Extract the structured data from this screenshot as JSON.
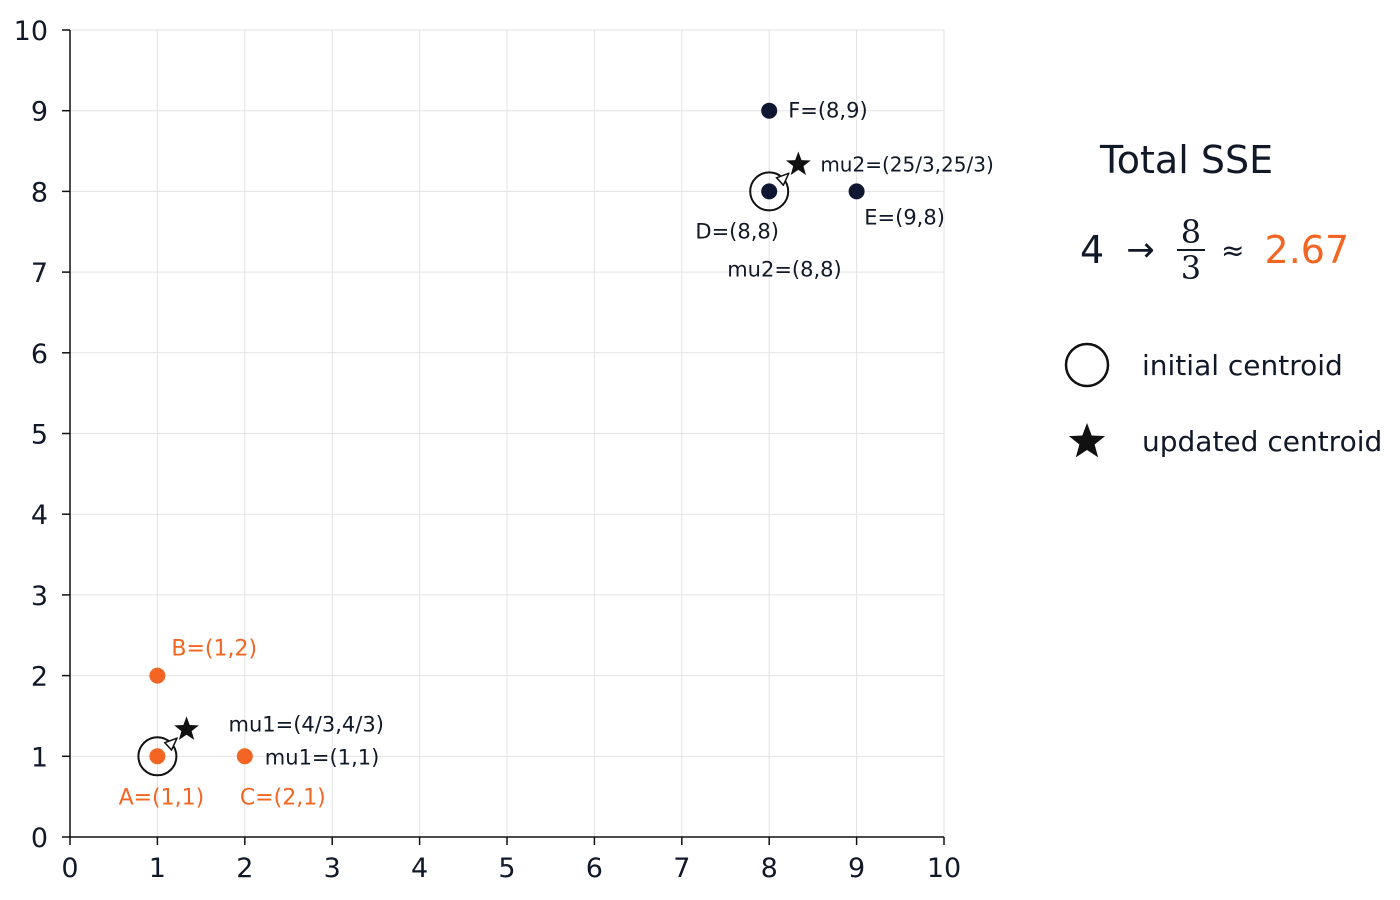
{
  "chart_data": {
    "type": "scatter",
    "xlim": [
      0,
      10
    ],
    "ylim": [
      0,
      10
    ],
    "x_ticks": [
      0,
      1,
      2,
      3,
      4,
      5,
      6,
      7,
      8,
      9,
      10
    ],
    "y_ticks": [
      0,
      1,
      2,
      3,
      4,
      5,
      6,
      7,
      8,
      9,
      10
    ],
    "grid": true,
    "colors": {
      "cluster1": "#f26522",
      "cluster2": "#0f1733",
      "grid": "#e3e3e3",
      "axis": "#111111"
    },
    "points": [
      {
        "label": "A=(1,1)",
        "x": 1,
        "y": 1,
        "cluster": 1
      },
      {
        "label": "B=(1,2)",
        "x": 1,
        "y": 2,
        "cluster": 1
      },
      {
        "label": "C=(2,1)",
        "x": 2,
        "y": 1,
        "cluster": 1
      },
      {
        "label": "D=(8,8)",
        "x": 8,
        "y": 8,
        "cluster": 2
      },
      {
        "label": "E=(9,8)",
        "x": 9,
        "y": 8,
        "cluster": 2
      },
      {
        "label": "F=(8,9)",
        "x": 8,
        "y": 9,
        "cluster": 2
      }
    ],
    "initial_centroids": [
      {
        "label": "mu1=(1,1)",
        "x": 1,
        "y": 1
      },
      {
        "label": "mu2=(8,8)",
        "x": 8,
        "y": 8
      }
    ],
    "updated_centroids": [
      {
        "label": "mu1=(4/3,4/3)",
        "x": 1.3333,
        "y": 1.3333
      },
      {
        "label": "mu2=(25/3,25/3)",
        "x": 8.3333,
        "y": 8.3333
      }
    ],
    "legend": [
      {
        "symbol": "circle-outline",
        "label": "initial centroid"
      },
      {
        "symbol": "star",
        "label": "updated centroid"
      }
    ]
  },
  "sse": {
    "title": "Total SSE",
    "before": "4",
    "arrow": "→",
    "numerator": "8",
    "denominator": "3",
    "approx": "≈",
    "value": "2.67",
    "value_color": "#f26522"
  }
}
